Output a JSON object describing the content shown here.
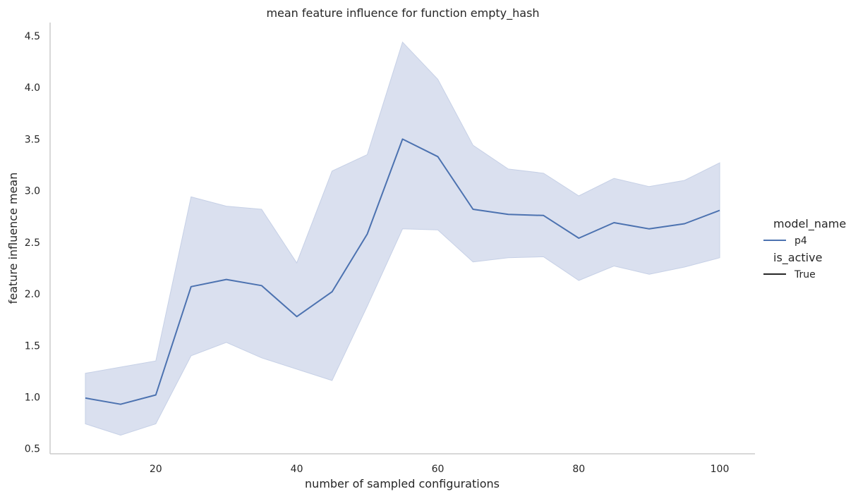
{
  "chart_data": {
    "type": "line",
    "title": "mean feature influence for function empty_hash",
    "xlabel": "number of sampled configurations",
    "ylabel": "feature influence mean",
    "xlim": [
      5,
      105
    ],
    "ylim": [
      0.45,
      4.63
    ],
    "xticks": [
      20,
      40,
      60,
      80,
      100
    ],
    "xtick_labels": [
      "20",
      "40",
      "60",
      "80",
      "100"
    ],
    "yticks": [
      0.5,
      1.0,
      1.5,
      2.0,
      2.5,
      3.0,
      3.5,
      4.0,
      4.5
    ],
    "ytick_labels": [
      "0.5",
      "1.0",
      "1.5",
      "2.0",
      "2.5",
      "3.0",
      "3.5",
      "4.0",
      "4.5"
    ],
    "grid": false,
    "legend_position": "right",
    "x": [
      10,
      15,
      20,
      25,
      30,
      35,
      40,
      45,
      50,
      55,
      60,
      65,
      70,
      75,
      80,
      85,
      90,
      95,
      100
    ],
    "series": [
      {
        "name": "p4",
        "color": "#4c72b0",
        "band_color": "#c6d0e6",
        "values": [
          0.99,
          0.93,
          1.02,
          2.07,
          2.14,
          2.08,
          1.78,
          2.02,
          2.58,
          3.5,
          3.33,
          2.82,
          2.77,
          2.76,
          2.54,
          2.69,
          2.63,
          2.68,
          2.81
        ],
        "ci_upper": [
          1.23,
          1.29,
          1.35,
          2.94,
          2.85,
          2.82,
          2.3,
          3.19,
          3.35,
          4.44,
          4.08,
          3.44,
          3.21,
          3.17,
          2.95,
          3.12,
          3.04,
          3.1,
          3.27
        ],
        "ci_lower": [
          0.74,
          0.63,
          0.74,
          1.4,
          1.53,
          1.38,
          1.27,
          1.16,
          1.88,
          2.63,
          2.62,
          2.31,
          2.35,
          2.36,
          2.13,
          2.27,
          2.19,
          2.26,
          2.35
        ]
      }
    ],
    "legend": {
      "hue_title": "model_name",
      "hue_label": "p4",
      "style_title": "is_active",
      "style_label": "True",
      "style_color": "#262626"
    }
  }
}
